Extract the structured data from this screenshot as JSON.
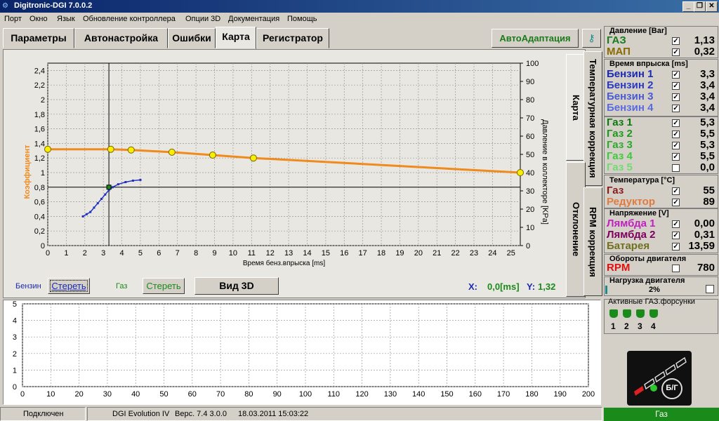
{
  "window": {
    "title": "Digitronic-DGI  7.0.0.2",
    "min": "_",
    "restore": "❐",
    "close": "✕"
  },
  "menu": [
    "Порт",
    "Окно",
    "Язык",
    "Обновление контроллера",
    "Опции 3D",
    "Документация",
    "Помощь"
  ],
  "tabs": [
    "Параметры",
    "Автонастройка",
    "Ошибки",
    "Карта",
    "Регистратор"
  ],
  "auto_adapt_label": "АвтоАдаптация",
  "side_tabs": {
    "karta": "Карта",
    "temp_corr": "Температурная коррекция",
    "otklonenie": "Отклонение",
    "rpm_corr": "RPM коррекция"
  },
  "controls": {
    "benzin_label": "Бензин",
    "benzin_clear": "Стереть",
    "gas_label": "Газ",
    "gas_clear": "Стереть",
    "view3d": "Вид 3D",
    "x_label": "X:",
    "x_value": "0,0[ms]",
    "y_label": "Y:",
    "y_value": "1,32"
  },
  "chart_data": [
    {
      "type": "line",
      "xlabel": "Время бенз.впрыска [ms]",
      "ylabel": "Коэффициент",
      "y2label": "Давление в коллекторе [KPa]",
      "xlim": [
        0,
        25.5
      ],
      "ylim": [
        0,
        2.5
      ],
      "y2lim": [
        0,
        100
      ],
      "xticks": [
        0,
        1,
        2,
        3,
        4,
        5,
        6,
        7,
        8,
        9,
        10,
        11,
        12,
        13,
        14,
        15,
        16,
        17,
        18,
        19,
        20,
        21,
        22,
        23,
        24,
        25
      ],
      "yticks": [
        "0",
        "0,2",
        "0,4",
        "0,6",
        "0,8",
        "1",
        "1,2",
        "1,4",
        "1,6",
        "1,8",
        "2",
        "2,2",
        "2,4"
      ],
      "y2ticks": [
        0,
        10,
        20,
        30,
        40,
        50,
        60,
        70,
        80,
        90,
        100
      ],
      "grid": true,
      "cursor": {
        "x": 3.3,
        "y": 0.8
      },
      "series": [
        {
          "color": "#f08a1c",
          "x": [
            0,
            3.4,
            4.5,
            6.7,
            8.9,
            11.1,
            25.5
          ],
          "y": [
            1.32,
            1.32,
            1.31,
            1.28,
            1.24,
            1.2,
            1.0
          ],
          "markers": [
            0,
            3.4,
            4.5,
            6.7,
            8.9,
            11.1,
            25.5
          ]
        },
        {
          "color": "#2030c0",
          "x": [
            1.9,
            2.1,
            2.3,
            2.5,
            2.7,
            2.9,
            3.1,
            3.3,
            3.5,
            3.8,
            4.2,
            4.6,
            5.0
          ],
          "y": [
            0.4,
            0.43,
            0.46,
            0.52,
            0.58,
            0.64,
            0.7,
            0.76,
            0.8,
            0.84,
            0.87,
            0.89,
            0.9
          ]
        }
      ]
    },
    {
      "type": "line",
      "xlim": [
        0,
        200
      ],
      "ylim": [
        0,
        5
      ],
      "xticks": [
        0,
        10,
        20,
        30,
        40,
        50,
        60,
        70,
        80,
        90,
        100,
        110,
        120,
        130,
        140,
        150,
        160,
        170,
        180,
        190,
        200
      ],
      "yticks": [
        0,
        1,
        2,
        3,
        4,
        5
      ],
      "series": []
    }
  ],
  "right": {
    "pressure": {
      "title": "Давление [Bar]",
      "rows": [
        {
          "label": "ГАЗ",
          "value": "1,13",
          "color": "#1a7a1a",
          "checked": true
        },
        {
          "label": "МАП",
          "value": "0,32",
          "color": "#8a6a00",
          "checked": true
        }
      ]
    },
    "injection": {
      "title": "Время впрыска [ms]",
      "rows": [
        {
          "label": "Бензин 1",
          "value": "3,3",
          "color": "#1a2ab0",
          "checked": true
        },
        {
          "label": "Бензин 2",
          "value": "3,4",
          "color": "#2a3ac0",
          "checked": true
        },
        {
          "label": "Бензин 3",
          "value": "3,4",
          "color": "#4a5ad0",
          "checked": true
        },
        {
          "label": "Бензин 4",
          "value": "3,4",
          "color": "#5a6ae0",
          "checked": true
        }
      ]
    },
    "gas": {
      "rows": [
        {
          "label": "Газ 1",
          "value": "5,3",
          "color": "#0a7a0a",
          "checked": true
        },
        {
          "label": "Газ 2",
          "value": "5,5",
          "color": "#1a9a1a",
          "checked": true
        },
        {
          "label": "Газ 3",
          "value": "5,3",
          "color": "#2aaa2a",
          "checked": true
        },
        {
          "label": "Газ 4",
          "value": "5,5",
          "color": "#3acb3a",
          "checked": true
        },
        {
          "label": "Газ 5",
          "value": "0,0",
          "color": "#6fdc6f",
          "checked": false
        }
      ]
    },
    "temperature": {
      "title": "Температура  [°C]",
      "rows": [
        {
          "label": "Газ",
          "value": "55",
          "color": "#8a1a1a",
          "checked": true
        },
        {
          "label": "Редуктор",
          "value": "89",
          "color": "#e07a40",
          "checked": true
        }
      ]
    },
    "voltage": {
      "title": "Напряжение [V]",
      "rows": [
        {
          "label": "Лямбда 1",
          "value": "0,00",
          "color": "#c020c0",
          "checked": true
        },
        {
          "label": "Лямбда 2",
          "value": "0,31",
          "color": "#800060",
          "checked": true
        },
        {
          "label": "Батарея",
          "value": "13,59",
          "color": "#707020",
          "checked": true
        }
      ]
    },
    "rpm": {
      "title": "Обороты двигателя",
      "label": "RPM",
      "value": "780",
      "color": "#e01010",
      "checked": false
    },
    "load": {
      "title": "Нагрузка двигателя",
      "value": "2%",
      "fraction": 0.02
    },
    "injectors": {
      "title": "Активные ГАЗ.форсунки",
      "labels": [
        "1",
        "2",
        "3",
        "4"
      ]
    },
    "switch_label": "Б/Г"
  },
  "status": {
    "connected": "Подключен",
    "ecu": "DGI Evolution IV",
    "ver": "Верс. 7.4  3.0.0",
    "datetime": "18.03.2011 15:03:22",
    "mode": "Газ"
  },
  "colors": {
    "orange": "#f08a1c",
    "blue": "#2030c0",
    "status_green": "#1a8a1a"
  }
}
